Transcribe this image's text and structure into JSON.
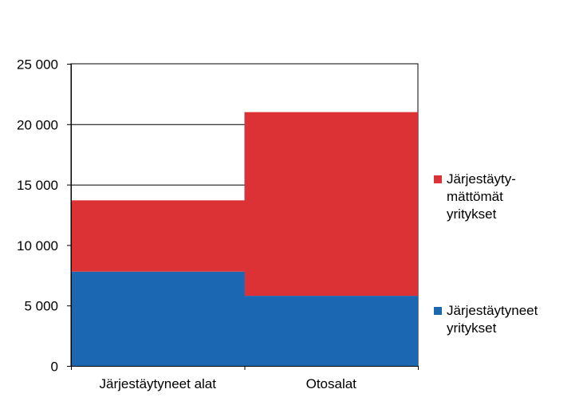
{
  "chart_data": {
    "type": "bar",
    "stacked": true,
    "categories": [
      "Järjestäytyneet alat",
      "Otosalat"
    ],
    "series": [
      {
        "name": "Järjestäytyneet\nyritykset",
        "values": [
          7800,
          5800
        ],
        "color": "#1b67b1"
      },
      {
        "name": "Järjestäyty-\nmättömät\nyritykset",
        "values": [
          5900,
          15200
        ],
        "color": "#dc3236"
      }
    ],
    "ylim": [
      0,
      25000
    ],
    "yticks": [
      "0",
      "5 000",
      "10 000",
      "15 000",
      "20 000",
      "25 000"
    ],
    "ytick_values": [
      0,
      5000,
      10000,
      15000,
      20000,
      25000
    ],
    "grid": true,
    "legend_position": "right",
    "title": "",
    "xlabel": "",
    "ylabel": ""
  }
}
